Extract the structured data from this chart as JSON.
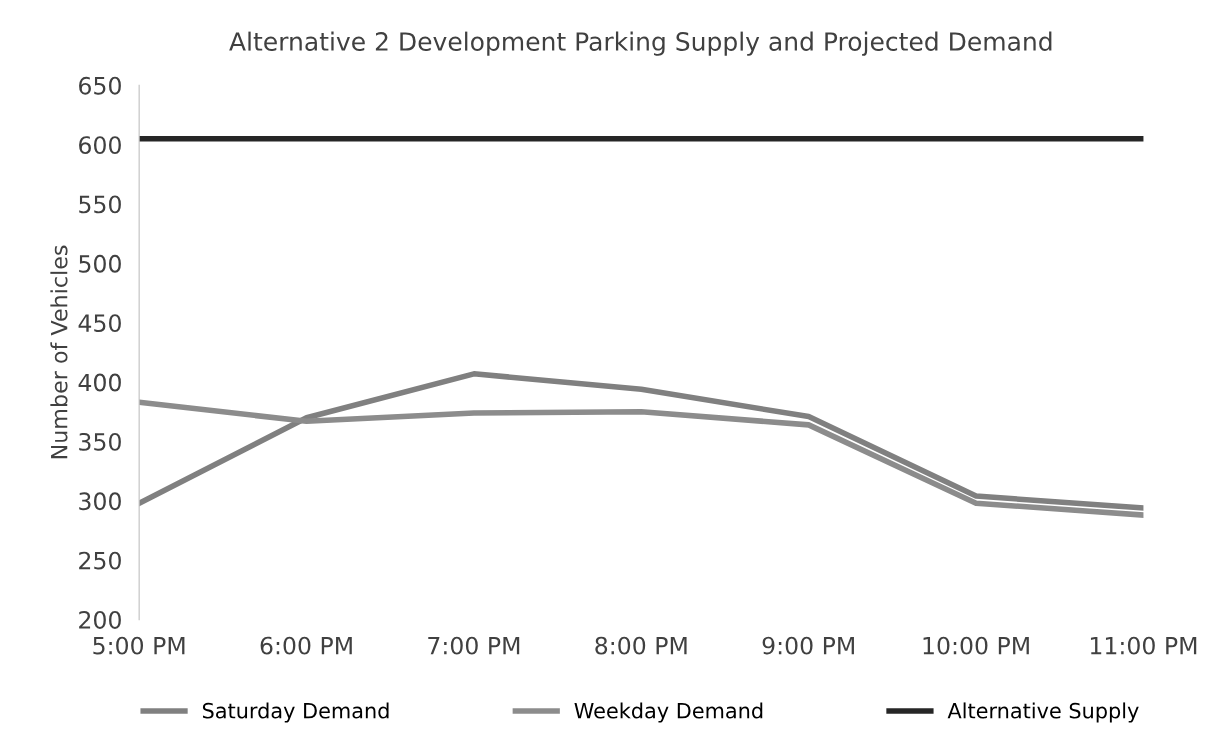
{
  "chart_data": {
    "type": "line",
    "title": "Alternative 2 Development Parking Supply and Projected Demand",
    "ylabel": "Number of Vehicles",
    "categories": [
      "5:00 PM",
      "6:00 PM",
      "7:00 PM",
      "8:00 PM",
      "9:00 PM",
      "10:00 PM",
      "11:00 PM"
    ],
    "series": [
      {
        "name": "Saturday Demand",
        "color": "#808080",
        "values": [
          298,
          370,
          407,
          394,
          371,
          304,
          294
        ]
      },
      {
        "name": "Weekday Demand",
        "color": "#8c8c8c",
        "values": [
          383,
          367,
          374,
          375,
          364,
          298,
          288
        ]
      },
      {
        "name": "Alternative Supply",
        "color": "#262626",
        "values": [
          605,
          605,
          605,
          605,
          605,
          605,
          605
        ]
      }
    ],
    "ylim": [
      200,
      650
    ],
    "yticks": [
      200,
      250,
      300,
      350,
      400,
      450,
      500,
      550,
      600,
      650
    ],
    "grid": false,
    "legend": "bottom",
    "marker": "none",
    "line_style": "solid"
  }
}
